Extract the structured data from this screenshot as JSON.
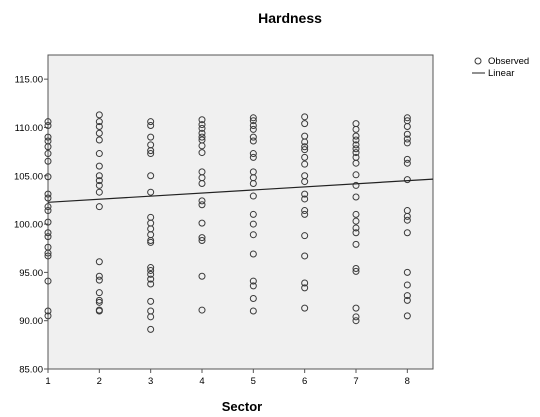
{
  "chart_data": {
    "type": "scatter",
    "title": "Hardness",
    "xlabel": "Sector",
    "ylabel": "",
    "xlim": [
      1,
      8.5
    ],
    "ylim": [
      85,
      117.5
    ],
    "x_ticks": [
      1,
      2,
      3,
      4,
      5,
      6,
      7,
      8
    ],
    "y_ticks": [
      85,
      90,
      95,
      100,
      105,
      110,
      115
    ],
    "y_tick_labels": [
      "85.00",
      "90.00",
      "95.00",
      "100.00",
      "105.00",
      "110.00",
      "115.00"
    ],
    "x_tick_labels": [
      "1",
      "2",
      "3",
      "4",
      "5",
      "6",
      "7",
      "8"
    ],
    "grid": false,
    "background": "#f0f0f0",
    "marker_color": "#3a3a3a",
    "legend_position": "top-right",
    "legend": [
      "Observed",
      "Linear"
    ],
    "series": [
      {
        "name": "Observed",
        "points": [
          [
            1,
            110.6
          ],
          [
            1,
            110.2
          ],
          [
            1,
            109.0
          ],
          [
            1,
            108.6
          ],
          [
            1,
            108.0
          ],
          [
            1,
            107.3
          ],
          [
            1,
            106.5
          ],
          [
            1,
            104.9
          ],
          [
            1,
            103.1
          ],
          [
            1,
            102.7
          ],
          [
            1,
            101.8
          ],
          [
            1,
            101.4
          ],
          [
            1,
            100.2
          ],
          [
            1,
            99.1
          ],
          [
            1,
            98.7
          ],
          [
            1,
            97.6
          ],
          [
            1,
            97.0
          ],
          [
            1,
            96.7
          ],
          [
            1,
            94.1
          ],
          [
            1,
            91.0
          ],
          [
            1,
            90.5
          ],
          [
            2,
            111.3
          ],
          [
            2,
            110.6
          ],
          [
            2,
            110.1
          ],
          [
            2,
            109.4
          ],
          [
            2,
            108.7
          ],
          [
            2,
            107.3
          ],
          [
            2,
            106.0
          ],
          [
            2,
            105.0
          ],
          [
            2,
            104.5
          ],
          [
            2,
            104.0
          ],
          [
            2,
            103.3
          ],
          [
            2,
            101.8
          ],
          [
            2,
            96.1
          ],
          [
            2,
            94.6
          ],
          [
            2,
            94.2
          ],
          [
            2,
            92.9
          ],
          [
            2,
            92.1
          ],
          [
            2,
            91.9
          ],
          [
            2,
            91.1
          ],
          [
            2,
            91.0
          ],
          [
            3,
            110.6
          ],
          [
            3,
            110.2
          ],
          [
            3,
            109.0
          ],
          [
            3,
            108.2
          ],
          [
            3,
            107.6
          ],
          [
            3,
            107.3
          ],
          [
            3,
            105.0
          ],
          [
            3,
            103.3
          ],
          [
            3,
            100.7
          ],
          [
            3,
            100.1
          ],
          [
            3,
            99.5
          ],
          [
            3,
            98.9
          ],
          [
            3,
            98.3
          ],
          [
            3,
            98.1
          ],
          [
            3,
            95.5
          ],
          [
            3,
            95.2
          ],
          [
            3,
            94.8
          ],
          [
            3,
            94.3
          ],
          [
            3,
            93.8
          ],
          [
            3,
            92.0
          ],
          [
            3,
            91.0
          ],
          [
            3,
            90.4
          ],
          [
            3,
            89.1
          ],
          [
            4,
            110.8
          ],
          [
            4,
            110.3
          ],
          [
            4,
            109.9
          ],
          [
            4,
            109.4
          ],
          [
            4,
            109.0
          ],
          [
            4,
            108.7
          ],
          [
            4,
            108.1
          ],
          [
            4,
            107.4
          ],
          [
            4,
            105.4
          ],
          [
            4,
            104.8
          ],
          [
            4,
            104.2
          ],
          [
            4,
            102.4
          ],
          [
            4,
            102.0
          ],
          [
            4,
            100.1
          ],
          [
            4,
            98.6
          ],
          [
            4,
            98.3
          ],
          [
            4,
            94.6
          ],
          [
            4,
            91.1
          ],
          [
            5,
            111.0
          ],
          [
            5,
            110.7
          ],
          [
            5,
            110.2
          ],
          [
            5,
            109.8
          ],
          [
            5,
            109.0
          ],
          [
            5,
            108.6
          ],
          [
            5,
            107.3
          ],
          [
            5,
            106.9
          ],
          [
            5,
            105.4
          ],
          [
            5,
            104.8
          ],
          [
            5,
            104.2
          ],
          [
            5,
            102.9
          ],
          [
            5,
            101.0
          ],
          [
            5,
            100.0
          ],
          [
            5,
            98.9
          ],
          [
            5,
            96.9
          ],
          [
            5,
            94.1
          ],
          [
            5,
            93.6
          ],
          [
            5,
            92.3
          ],
          [
            5,
            91.0
          ],
          [
            6,
            111.1
          ],
          [
            6,
            110.4
          ],
          [
            6,
            109.1
          ],
          [
            6,
            108.5
          ],
          [
            6,
            108.0
          ],
          [
            6,
            107.7
          ],
          [
            6,
            106.9
          ],
          [
            6,
            106.2
          ],
          [
            6,
            105.0
          ],
          [
            6,
            104.4
          ],
          [
            6,
            103.1
          ],
          [
            6,
            102.6
          ],
          [
            6,
            101.4
          ],
          [
            6,
            101.0
          ],
          [
            6,
            98.8
          ],
          [
            6,
            96.7
          ],
          [
            6,
            93.9
          ],
          [
            6,
            93.4
          ],
          [
            6,
            91.3
          ],
          [
            7,
            110.4
          ],
          [
            7,
            109.8
          ],
          [
            7,
            109.1
          ],
          [
            7,
            108.7
          ],
          [
            7,
            108.2
          ],
          [
            7,
            107.8
          ],
          [
            7,
            107.4
          ],
          [
            7,
            106.9
          ],
          [
            7,
            106.3
          ],
          [
            7,
            105.1
          ],
          [
            7,
            104.0
          ],
          [
            7,
            102.8
          ],
          [
            7,
            101.0
          ],
          [
            7,
            100.3
          ],
          [
            7,
            99.6
          ],
          [
            7,
            99.1
          ],
          [
            7,
            97.9
          ],
          [
            7,
            95.4
          ],
          [
            7,
            95.1
          ],
          [
            7,
            91.3
          ],
          [
            7,
            90.4
          ],
          [
            7,
            90.0
          ],
          [
            8,
            111.0
          ],
          [
            8,
            110.7
          ],
          [
            8,
            110.1
          ],
          [
            8,
            109.3
          ],
          [
            8,
            108.8
          ],
          [
            8,
            108.4
          ],
          [
            8,
            106.7
          ],
          [
            8,
            106.3
          ],
          [
            8,
            104.6
          ],
          [
            8,
            101.4
          ],
          [
            8,
            100.8
          ],
          [
            8,
            100.4
          ],
          [
            8,
            99.1
          ],
          [
            8,
            95.0
          ],
          [
            8,
            93.7
          ],
          [
            8,
            92.6
          ],
          [
            8,
            92.1
          ],
          [
            8,
            90.5
          ]
        ]
      },
      {
        "name": "Linear",
        "type": "line",
        "x": [
          1,
          8.5
        ],
        "y": [
          102.25,
          104.65
        ]
      }
    ]
  }
}
